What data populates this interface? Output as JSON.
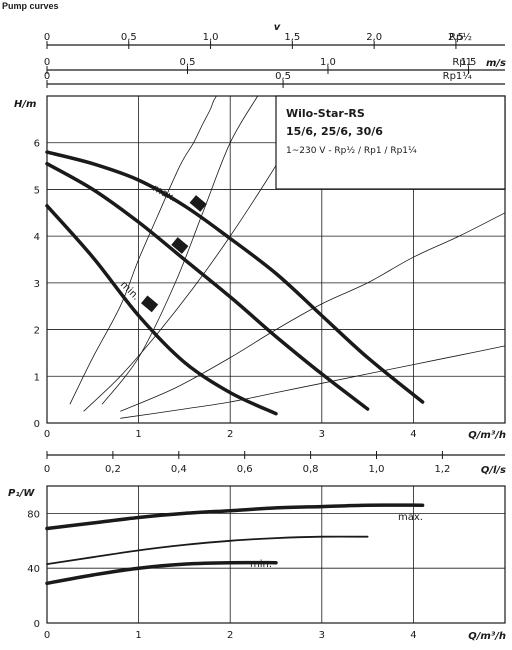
{
  "page": {
    "title": "Pump curves"
  },
  "chart_data": [
    {
      "type": "line",
      "title": "Wilo-Star-RS",
      "subtitle": "15/6, 25/6, 30/6",
      "description": "1~230 V - Rp½ / Rp1 / Rp1¼",
      "xlabel": "Q/m³/h",
      "ylabel": "H/m",
      "xlim": [
        0,
        5
      ],
      "ylim": [
        0,
        7
      ],
      "xticks": [
        "0",
        "1",
        "2",
        "3",
        "4"
      ],
      "yticks": [
        "0",
        "1",
        "2",
        "3",
        "4",
        "5",
        "6"
      ],
      "grid": true,
      "secondary_axes": [
        {
          "title": "v",
          "unit": "m/s",
          "label": "Rp½",
          "max_value": 2.8,
          "ticks": [
            {
              "v": 0,
              "t": "0"
            },
            {
              "v": 0.5,
              "t": "0,5"
            },
            {
              "v": 1.0,
              "t": "1,0"
            },
            {
              "v": 1.5,
              "t": "1,5"
            },
            {
              "v": 2.0,
              "t": "2,0"
            },
            {
              "v": 2.5,
              "t": "2,5"
            }
          ]
        },
        {
          "unit": "m/s",
          "label": "Rp1",
          "max_value": 1.63,
          "ticks": [
            {
              "v": 0,
              "t": "0"
            },
            {
              "v": 0.5,
              "t": "0,5"
            },
            {
              "v": 1.0,
              "t": "1,0"
            },
            {
              "v": 1.5,
              "t": "1,5"
            }
          ]
        },
        {
          "unit": "m/s",
          "label": "Rp1¼",
          "max_value": 0.97,
          "ticks": [
            {
              "v": 0,
              "t": "0"
            },
            {
              "v": 0.5,
              "t": "0,5"
            },
            {
              "v": 1.0,
              "t": "1,0"
            }
          ]
        }
      ],
      "series": [
        {
          "name": "max.",
          "x": [
            0,
            0.5,
            1.0,
            1.5,
            2.0,
            2.5,
            3.0,
            3.5,
            4.1
          ],
          "y": [
            5.8,
            5.55,
            5.2,
            4.65,
            3.95,
            3.2,
            2.3,
            1.4,
            0.45
          ]
        },
        {
          "x": [
            0,
            0.5,
            1.0,
            1.5,
            2.0,
            2.5,
            3.0,
            3.5
          ],
          "y": [
            5.55,
            5.0,
            4.3,
            3.5,
            2.7,
            1.85,
            1.05,
            0.3
          ]
        },
        {
          "name": "min.",
          "x": [
            0,
            0.5,
            1.0,
            1.5,
            2.0,
            2.5
          ],
          "y": [
            4.65,
            3.55,
            2.3,
            1.3,
            0.65,
            0.2
          ]
        }
      ],
      "system_curves": [
        {
          "x": [
            0.25,
            0.5,
            0.8,
            1.0,
            1.2,
            1.45,
            1.6,
            1.7,
            1.78,
            1.82,
            1.85
          ],
          "y": [
            0.4,
            1.4,
            2.5,
            3.5,
            4.4,
            5.5,
            6.0,
            6.4,
            6.7,
            6.9,
            7.0
          ]
        },
        {
          "x": [
            0.4,
            0.8,
            1.2,
            1.6,
            2.0,
            2.4,
            2.65,
            2.8,
            2.9
          ],
          "y": [
            0.25,
            1.0,
            1.9,
            2.9,
            4.0,
            5.2,
            6.0,
            6.5,
            7.0
          ]
        },
        {
          "x": [
            0.8,
            1.4,
            2.0,
            2.5,
            3.0,
            3.5,
            4.0,
            4.5,
            5.0
          ],
          "y": [
            0.25,
            0.75,
            1.4,
            2.0,
            2.55,
            3.0,
            3.55,
            4.0,
            4.5
          ]
        },
        {
          "x": [
            0.8,
            1.5,
            2.0,
            2.5,
            3.0,
            3.5,
            4.0,
            4.5,
            5.0
          ],
          "y": [
            0.1,
            0.3,
            0.45,
            0.65,
            0.85,
            1.05,
            1.25,
            1.45,
            1.65
          ]
        },
        {
          "x": [
            0.6,
            1.0,
            1.4,
            1.7,
            2.0,
            2.3
          ],
          "y": [
            0.4,
            1.4,
            3.0,
            4.5,
            6.0,
            7.0
          ]
        }
      ]
    },
    {
      "type": "line",
      "xlabel": "Q/l/s",
      "xlim": [
        0,
        1.39
      ],
      "xticks": [
        "0",
        "0,2",
        "0,4",
        "0,6",
        "0,8",
        "1,0",
        "1,2"
      ],
      "xtick_values": [
        0,
        0.2,
        0.4,
        0.6,
        0.8,
        1.0,
        1.2
      ]
    },
    {
      "type": "line",
      "xlabel": "Q/m³/h",
      "ylabel": "P₁/W",
      "xlim": [
        0,
        5
      ],
      "ylim": [
        0,
        100
      ],
      "xticks": [
        "0",
        "1",
        "2",
        "3",
        "4"
      ],
      "yticks": [
        "0",
        "40",
        "80"
      ],
      "ytick_values": [
        0,
        40,
        80
      ],
      "grid": true,
      "series": [
        {
          "name": "max.",
          "x": [
            0,
            0.5,
            1.0,
            1.5,
            2.0,
            2.5,
            3.0,
            3.5,
            4.1
          ],
          "y": [
            69,
            73,
            77,
            80,
            82,
            84,
            85,
            86,
            86
          ]
        },
        {
          "x": [
            0,
            0.5,
            1.0,
            1.5,
            2.0,
            2.5,
            3.0,
            3.5
          ],
          "y": [
            43,
            48,
            53,
            57,
            60,
            62,
            63,
            63
          ]
        },
        {
          "name": "min.",
          "x": [
            0,
            0.5,
            1.0,
            1.5,
            2.0,
            2.5
          ],
          "y": [
            29,
            35,
            40,
            43,
            44,
            44
          ]
        }
      ]
    }
  ]
}
